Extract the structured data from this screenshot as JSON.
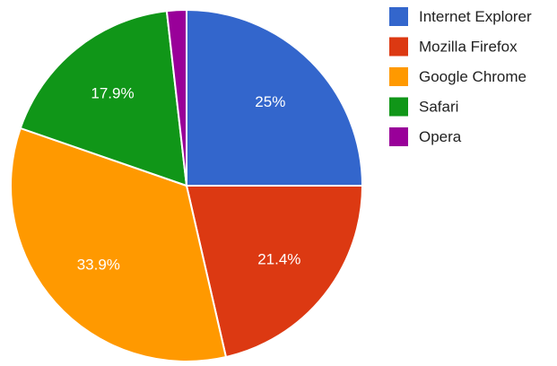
{
  "chart_data": {
    "type": "pie",
    "title": "",
    "legend_position": "right",
    "slices": [
      {
        "label": "Internet Explorer",
        "value": 25.0,
        "display": "25%",
        "color": "#3366cc"
      },
      {
        "label": "Mozilla Firefox",
        "value": 21.4,
        "display": "21.4%",
        "color": "#dc3912"
      },
      {
        "label": "Google Chrome",
        "value": 33.9,
        "display": "33.9%",
        "color": "#ff9900"
      },
      {
        "label": "Safari",
        "value": 17.9,
        "display": "17.9%",
        "color": "#109618"
      },
      {
        "label": "Opera",
        "value": 1.8,
        "display": "",
        "color": "#990099"
      }
    ]
  }
}
